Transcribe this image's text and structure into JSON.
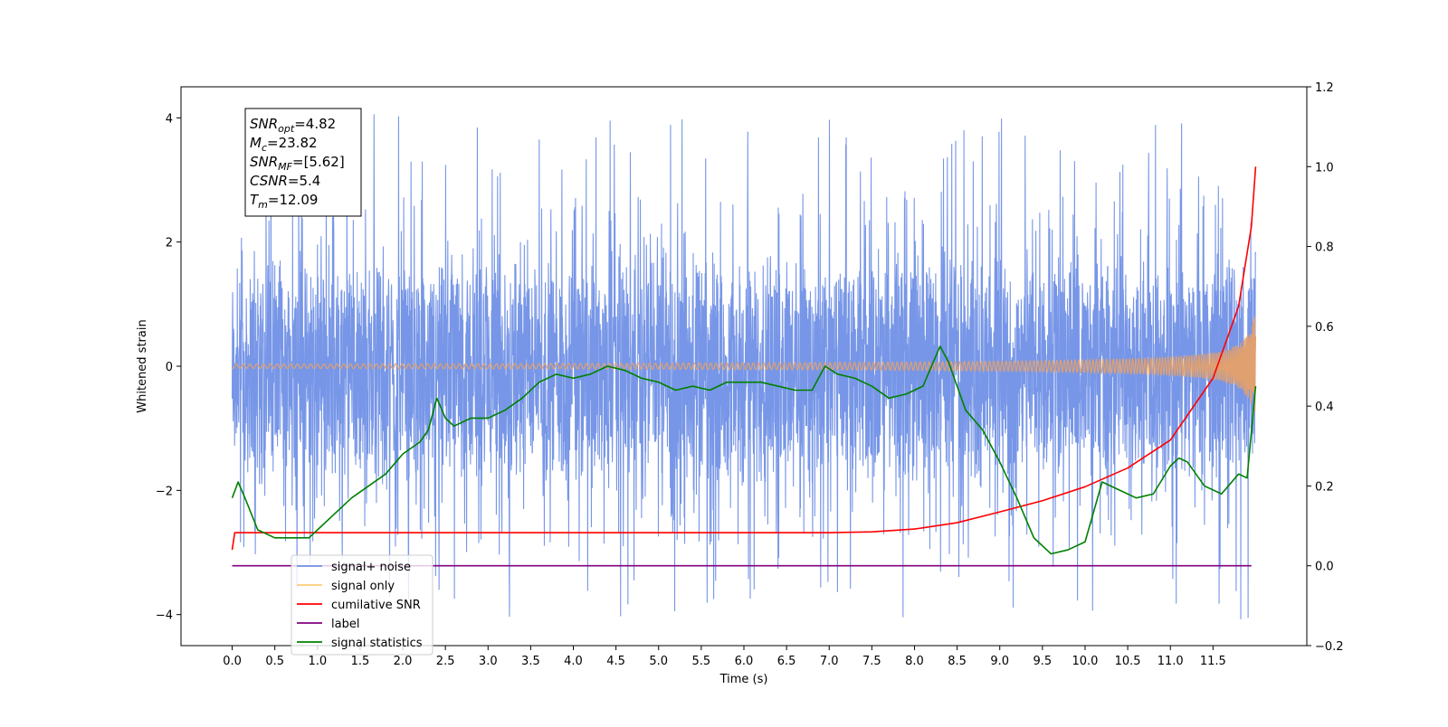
{
  "chart_data": {
    "type": "line",
    "xlabel": "Time (s)",
    "ylabel": "Whitened strain",
    "xlim": [
      -0.6,
      12.6
    ],
    "ylim_left": [
      -4.5,
      4.5
    ],
    "ylim_right": [
      -0.2,
      1.2
    ],
    "x_ticks": [
      "0.0",
      "0.5",
      "1.0",
      "1.5",
      "2.0",
      "2.5",
      "3.0",
      "3.5",
      "4.0",
      "4.5",
      "5.0",
      "5.5",
      "6.0",
      "6.5",
      "7.0",
      "7.5",
      "8.0",
      "8.5",
      "9.0",
      "9.5",
      "10.0",
      "10.5",
      "11.0",
      "11.5"
    ],
    "y_ticks_left": [
      "4",
      "2",
      "0",
      "−2",
      "−4"
    ],
    "y_ticks_right": [
      "1.2",
      "1.0",
      "0.8",
      "0.6",
      "0.4",
      "0.2",
      "0.0",
      "−0.2"
    ],
    "grid": false,
    "stats_box": [
      {
        "sym": "SNR",
        "sub": "opt",
        "val": "=4.82"
      },
      {
        "sym": "M",
        "sub": "c",
        "val": "=23.82"
      },
      {
        "sym": "SNR",
        "sub": "MF",
        "val": "=[5.62]"
      },
      {
        "sym": "CSNR",
        "sub": "",
        "val": "=5.4"
      },
      {
        "sym": "T",
        "sub": "m",
        "val": "=12.09"
      }
    ],
    "legend": {
      "placement": "lower-left",
      "entries": [
        {
          "label": "signal+ noise",
          "color": "#7090e6"
        },
        {
          "label": "signal only",
          "color": "#ffcc77"
        },
        {
          "label": "cumilative SNR",
          "color": "#ff0000"
        },
        {
          "label": "label",
          "color": "#800080"
        },
        {
          "label": "signal statistics",
          "color": "#008000"
        }
      ]
    },
    "series": [
      {
        "name": "signal+ noise",
        "axis": "left",
        "color": "#7090e6",
        "band": {
          "x_range": [
            0.0,
            12.0
          ],
          "core_low": -1.5,
          "core_high": 1.1,
          "spike_max": 4.1,
          "spike_min": -4.1
        }
      },
      {
        "name": "signal only",
        "axis": "left",
        "color": "#e0a070",
        "chirp": {
          "x_range": [
            0.0,
            12.0
          ],
          "amp_start": 0.0,
          "amp_end": 0.95
        }
      },
      {
        "name": "cumilative SNR",
        "axis": "right",
        "color": "#ff0000",
        "x": [
          0.0,
          0.03,
          1.0,
          2.0,
          3.0,
          4.0,
          5.0,
          6.0,
          7.0,
          7.5,
          8.0,
          8.5,
          9.0,
          9.5,
          10.0,
          10.5,
          11.0,
          11.5,
          11.8,
          11.95,
          12.0
        ],
        "y": [
          0.04,
          0.083,
          0.083,
          0.083,
          0.083,
          0.083,
          0.083,
          0.083,
          0.083,
          0.085,
          0.092,
          0.108,
          0.135,
          0.163,
          0.198,
          0.245,
          0.315,
          0.47,
          0.65,
          0.85,
          1.0
        ]
      },
      {
        "name": "label",
        "axis": "right",
        "color": "#800080",
        "x": [
          0.0,
          11.95
        ],
        "y": [
          0.0,
          0.0
        ]
      },
      {
        "name": "signal statistics",
        "axis": "right",
        "color": "#008000",
        "x": [
          0.0,
          0.07,
          0.15,
          0.3,
          0.5,
          0.7,
          0.9,
          1.0,
          1.2,
          1.4,
          1.6,
          1.8,
          2.0,
          2.2,
          2.3,
          2.4,
          2.5,
          2.6,
          2.8,
          3.0,
          3.2,
          3.4,
          3.6,
          3.8,
          4.0,
          4.2,
          4.4,
          4.6,
          4.8,
          5.0,
          5.2,
          5.4,
          5.6,
          5.8,
          6.0,
          6.2,
          6.4,
          6.6,
          6.8,
          6.95,
          7.1,
          7.3,
          7.5,
          7.7,
          7.9,
          8.1,
          8.3,
          8.4,
          8.6,
          8.8,
          9.0,
          9.2,
          9.4,
          9.6,
          9.8,
          10.0,
          10.2,
          10.4,
          10.6,
          10.8,
          11.0,
          11.1,
          11.2,
          11.4,
          11.6,
          11.8,
          11.9,
          12.0
        ],
        "y": [
          0.17,
          0.21,
          0.17,
          0.09,
          0.07,
          0.07,
          0.07,
          0.09,
          0.13,
          0.17,
          0.2,
          0.23,
          0.28,
          0.31,
          0.34,
          0.42,
          0.37,
          0.35,
          0.37,
          0.37,
          0.39,
          0.42,
          0.46,
          0.48,
          0.47,
          0.48,
          0.5,
          0.49,
          0.47,
          0.46,
          0.44,
          0.45,
          0.44,
          0.46,
          0.46,
          0.46,
          0.45,
          0.44,
          0.44,
          0.5,
          0.48,
          0.47,
          0.45,
          0.42,
          0.43,
          0.45,
          0.55,
          0.51,
          0.39,
          0.34,
          0.26,
          0.17,
          0.07,
          0.03,
          0.04,
          0.06,
          0.21,
          0.19,
          0.17,
          0.18,
          0.25,
          0.27,
          0.26,
          0.2,
          0.18,
          0.23,
          0.22,
          0.45
        ]
      }
    ]
  }
}
